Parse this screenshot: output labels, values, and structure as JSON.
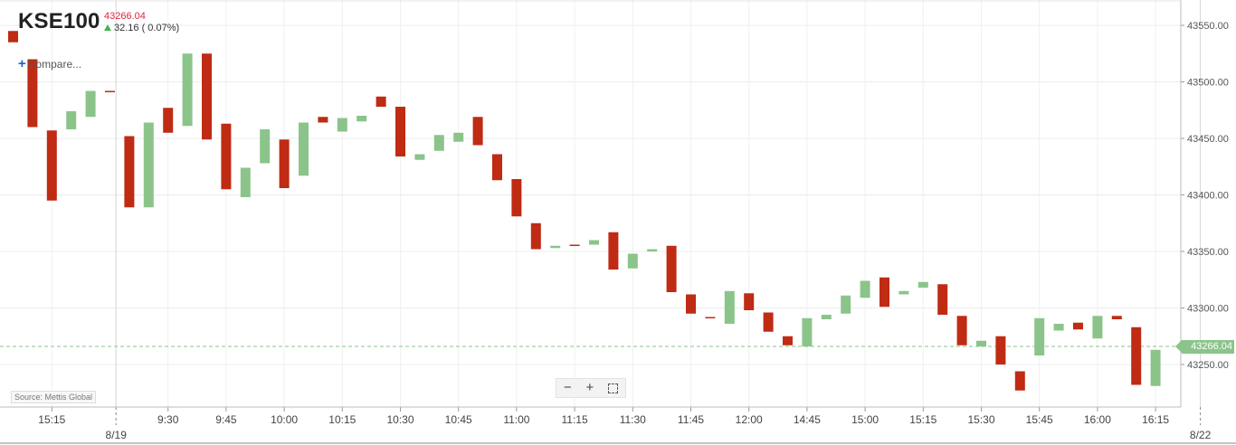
{
  "header": {
    "symbol": "KSE100",
    "last_price": "43266.04",
    "change": "32.16 ( 0.07%)"
  },
  "compare_label": "Compare...",
  "source_label": "Source: Mettis Global",
  "zoom_controls": {
    "zoom_out": "−",
    "zoom_in": "+",
    "fullscreen_icon": "fullscreen-icon"
  },
  "colors": {
    "up": "#8bc48a",
    "down": "#bf2b13",
    "last_price_line": "#8bc48a"
  },
  "chart_data": {
    "type": "candlestick",
    "symbol": "KSE100",
    "ylim": [
      43205,
      43575
    ],
    "y_ticks": [
      43250,
      43300,
      43350,
      43400,
      43450,
      43500,
      43550
    ],
    "y_tick_labels": [
      "43250.00",
      "43300.00",
      "43350.00",
      "43400.00",
      "43450.00",
      "43500.00",
      "43550.00"
    ],
    "x_tick_labels": [
      {
        "i": 2,
        "label": "15:15"
      },
      {
        "i": 8,
        "label": "9:30"
      },
      {
        "i": 11,
        "label": "9:45"
      },
      {
        "i": 14,
        "label": "10:00"
      },
      {
        "i": 17,
        "label": "10:15"
      },
      {
        "i": 20,
        "label": "10:30"
      },
      {
        "i": 23,
        "label": "10:45"
      },
      {
        "i": 26,
        "label": "11:00"
      },
      {
        "i": 29,
        "label": "11:15"
      },
      {
        "i": 32,
        "label": "11:30"
      },
      {
        "i": 35,
        "label": "11:45"
      },
      {
        "i": 38,
        "label": "12:00"
      },
      {
        "i": 41,
        "label": "14:45"
      },
      {
        "i": 44,
        "label": "15:00"
      },
      {
        "i": 47,
        "label": "15:15"
      },
      {
        "i": 50,
        "label": "15:30"
      },
      {
        "i": 53,
        "label": "15:45"
      },
      {
        "i": 56,
        "label": "16:00"
      },
      {
        "i": 59,
        "label": "16:15"
      }
    ],
    "date_labels": [
      {
        "i": 5.5,
        "label": "8/19"
      },
      {
        "i": 61.5,
        "label": "8/22"
      }
    ],
    "last_value": 43266.04,
    "last_value_label": "43266.04",
    "candles": [
      [
        43545,
        43535
      ],
      [
        43520,
        43460
      ],
      [
        43457,
        43395
      ],
      [
        43458,
        43474
      ],
      [
        43469,
        43492
      ],
      [
        43492,
        43491
      ],
      [
        43452,
        43389
      ],
      [
        43389,
        43464
      ],
      [
        43477,
        43455
      ],
      [
        43461,
        43525
      ],
      [
        43525,
        43449
      ],
      [
        43463,
        43405
      ],
      [
        43398,
        43424
      ],
      [
        43428,
        43458
      ],
      [
        43449,
        43406
      ],
      [
        43417,
        43464
      ],
      [
        43469,
        43464
      ],
      [
        43456,
        43468
      ],
      [
        43465,
        43470
      ],
      [
        43487,
        43478
      ],
      [
        43478,
        43434
      ],
      [
        43431,
        43436
      ],
      [
        43439,
        43453
      ],
      [
        43447,
        43455
      ],
      [
        43469,
        43444
      ],
      [
        43436,
        43413
      ],
      [
        43414,
        43381
      ],
      [
        43375,
        43352
      ],
      [
        43353,
        43355
      ],
      [
        43356,
        43355
      ],
      [
        43356,
        43360
      ],
      [
        43367,
        43334
      ],
      [
        43335,
        43348
      ],
      [
        43350,
        43352
      ],
      [
        43355,
        43314
      ],
      [
        43312,
        43295
      ],
      [
        43292,
        43291
      ],
      [
        43286,
        43315
      ],
      [
        43313,
        43298
      ],
      [
        43296,
        43279
      ],
      [
        43275,
        43267
      ],
      [
        43266,
        43291
      ],
      [
        43290,
        43294
      ],
      [
        43295,
        43311
      ],
      [
        43309,
        43324
      ],
      [
        43327,
        43301
      ],
      [
        43312,
        43315
      ],
      [
        43318,
        43323
      ],
      [
        43321,
        43294
      ],
      [
        43293,
        43267
      ],
      [
        43266,
        43271
      ],
      [
        43275,
        43250
      ],
      [
        43244,
        43227
      ],
      [
        43258,
        43291
      ],
      [
        43280,
        43286
      ],
      [
        43287,
        43281
      ],
      [
        43273,
        43293
      ],
      [
        43293,
        43290
      ],
      [
        43283,
        43232
      ],
      [
        43231,
        43263
      ]
    ]
  }
}
